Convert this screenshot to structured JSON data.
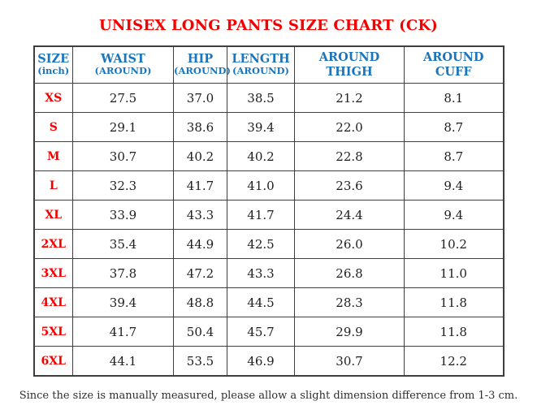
{
  "title": "UNISEX LONG PANTS SIZE CHART (CK)",
  "colors": {
    "title_red": "#f40000",
    "size_label_red": "#f40000",
    "header_blue": "#1b75bc",
    "value_text": "#1e1e1e",
    "grid_line": "#3f3f3f",
    "background": "#ffffff"
  },
  "table": {
    "columns": [
      {
        "line1": "SIZE",
        "line2": "(inch)"
      },
      {
        "line1": "WAIST",
        "line2": "(AROUND)"
      },
      {
        "line1": "HIP",
        "line2": "(AROUND)"
      },
      {
        "line1": "LENGTH",
        "line2": "(AROUND)"
      },
      {
        "line1": "AROUND",
        "line2": "THIGH"
      },
      {
        "line1": "AROUND",
        "line2": "CUFF"
      }
    ],
    "rows": [
      {
        "size": "XS",
        "values": [
          "27.5",
          "37.0",
          "38.5",
          "21.2",
          "8.1"
        ]
      },
      {
        "size": "S",
        "values": [
          "29.1",
          "38.6",
          "39.4",
          "22.0",
          "8.7"
        ]
      },
      {
        "size": "M",
        "values": [
          "30.7",
          "40.2",
          "40.2",
          "22.8",
          "8.7"
        ]
      },
      {
        "size": "L",
        "values": [
          "32.3",
          "41.7",
          "41.0",
          "23.6",
          "9.4"
        ]
      },
      {
        "size": "XL",
        "values": [
          "33.9",
          "43.3",
          "41.7",
          "24.4",
          "9.4"
        ]
      },
      {
        "size": "2XL",
        "values": [
          "35.4",
          "44.9",
          "42.5",
          "26.0",
          "10.2"
        ]
      },
      {
        "size": "3XL",
        "values": [
          "37.8",
          "47.2",
          "43.3",
          "26.8",
          "11.0"
        ]
      },
      {
        "size": "4XL",
        "values": [
          "39.4",
          "48.8",
          "44.5",
          "28.3",
          "11.8"
        ]
      },
      {
        "size": "5XL",
        "values": [
          "41.7",
          "50.4",
          "45.7",
          "29.9",
          "11.8"
        ]
      },
      {
        "size": "6XL",
        "values": [
          "44.1",
          "53.5",
          "46.9",
          "30.7",
          "12.2"
        ]
      }
    ]
  },
  "footer_note": "Since the size is manually measured, please allow a slight dimension difference from 1-3 cm.",
  "chart_data": {
    "type": "table",
    "title": "UNISEX LONG PANTS SIZE CHART (CK)",
    "unit": "inch",
    "columns": [
      "SIZE (inch)",
      "WAIST (AROUND)",
      "HIP (AROUND)",
      "LENGTH (AROUND)",
      "AROUND THIGH",
      "AROUND CUFF"
    ],
    "rows": [
      [
        "XS",
        27.5,
        37.0,
        38.5,
        21.2,
        8.1
      ],
      [
        "S",
        29.1,
        38.6,
        39.4,
        22.0,
        8.7
      ],
      [
        "M",
        30.7,
        40.2,
        40.2,
        22.8,
        8.7
      ],
      [
        "L",
        32.3,
        41.7,
        41.0,
        23.6,
        9.4
      ],
      [
        "XL",
        33.9,
        43.3,
        41.7,
        24.4,
        9.4
      ],
      [
        "2XL",
        35.4,
        44.9,
        42.5,
        26.0,
        10.2
      ],
      [
        "3XL",
        37.8,
        47.2,
        43.3,
        26.8,
        11.0
      ],
      [
        "4XL",
        39.4,
        48.8,
        44.5,
        28.3,
        11.8
      ],
      [
        "5XL",
        41.7,
        50.4,
        45.7,
        29.9,
        11.8
      ],
      [
        "6XL",
        44.1,
        53.5,
        46.9,
        30.7,
        12.2
      ]
    ],
    "note": "Since the size is manually measured, please allow a slight dimension difference from 1-3 cm."
  }
}
